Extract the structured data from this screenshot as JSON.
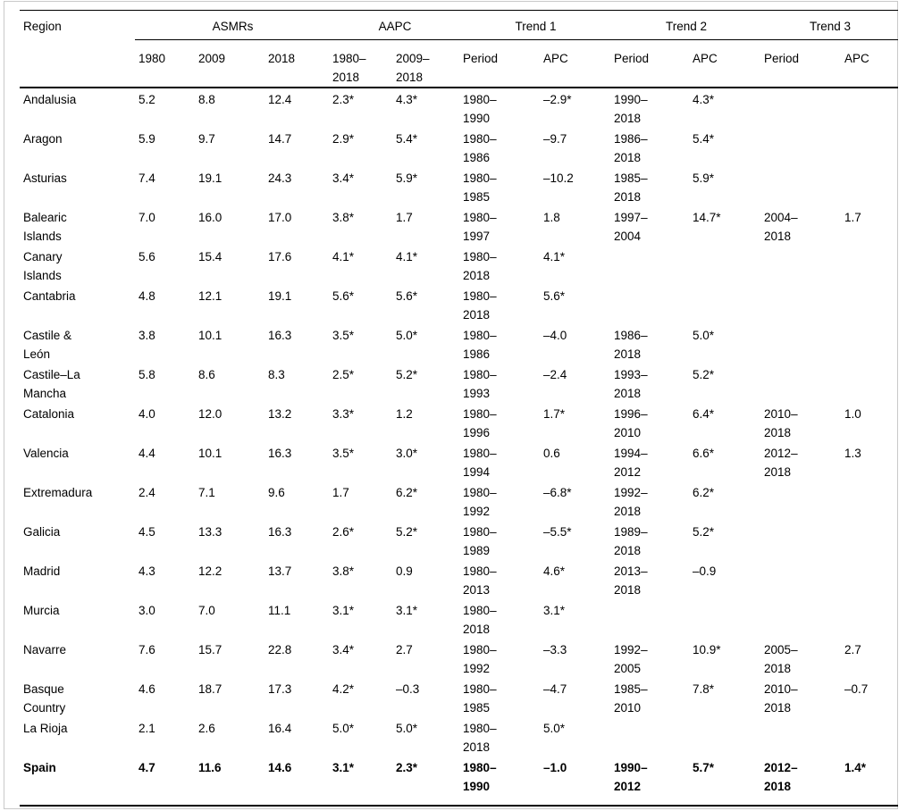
{
  "table": {
    "col_groups": [
      {
        "label": "Region"
      },
      {
        "label": "ASMRs",
        "span": 3
      },
      {
        "label": "AAPC",
        "span": 2
      },
      {
        "label": "Trend 1",
        "span": 2
      },
      {
        "label": "Trend 2",
        "span": 2
      },
      {
        "label": "Trend 3",
        "span": 2
      }
    ],
    "sub_headers": [
      "1980",
      "2009",
      "2018",
      "1980–\n2018",
      "2009–\n2018",
      "Period",
      "APC",
      "Period",
      "APC",
      "Period",
      "APC"
    ],
    "rows": [
      {
        "region": "Andalusia",
        "bold": false,
        "cells": [
          "5.2",
          "8.8",
          "12.4",
          "2.3*",
          "4.3*",
          "1980–\n1990",
          "–2.9*",
          "1990–\n2018",
          "4.3*",
          "",
          ""
        ]
      },
      {
        "region": "Aragon",
        "bold": false,
        "cells": [
          "5.9",
          "9.7",
          "14.7",
          "2.9*",
          "5.4*",
          "1980–\n1986",
          "–9.7",
          "1986–\n2018",
          "5.4*",
          "",
          ""
        ]
      },
      {
        "region": "Asturias",
        "bold": false,
        "cells": [
          "7.4",
          "19.1",
          "24.3",
          "3.4*",
          "5.9*",
          "1980–\n1985",
          "–10.2",
          "1985–\n2018",
          "5.9*",
          "",
          ""
        ]
      },
      {
        "region": "Balearic\nIslands",
        "bold": false,
        "cells": [
          "7.0",
          "16.0",
          "17.0",
          "3.8*",
          "1.7",
          "1980–\n1997",
          "1.8",
          "1997–\n2004",
          "14.7*",
          "2004–\n2018",
          "1.7"
        ]
      },
      {
        "region": "Canary\nIslands",
        "bold": false,
        "cells": [
          "5.6",
          "15.4",
          "17.6",
          "4.1*",
          "4.1*",
          "1980–\n2018",
          "4.1*",
          "",
          "",
          "",
          ""
        ]
      },
      {
        "region": "Cantabria",
        "bold": false,
        "cells": [
          "4.8",
          "12.1",
          "19.1",
          "5.6*",
          "5.6*",
          "1980–\n2018",
          "5.6*",
          "",
          "",
          "",
          ""
        ]
      },
      {
        "region": "Castile &\nLeón",
        "bold": false,
        "cells": [
          "3.8",
          "10.1",
          "16.3",
          "3.5*",
          "5.0*",
          "1980–\n1986",
          "–4.0",
          "1986–\n2018",
          "5.0*",
          "",
          ""
        ]
      },
      {
        "region": "Castile–La\nMancha",
        "bold": false,
        "cells": [
          "5.8",
          "8.6",
          "8.3",
          "2.5*",
          "5.2*",
          "1980–\n1993",
          "–2.4",
          "1993–\n2018",
          "5.2*",
          "",
          ""
        ]
      },
      {
        "region": "Catalonia",
        "bold": false,
        "cells": [
          "4.0",
          "12.0",
          "13.2",
          "3.3*",
          "1.2",
          "1980–\n1996",
          "1.7*",
          "1996–\n2010",
          "6.4*",
          "2010–\n2018",
          "1.0"
        ]
      },
      {
        "region": "Valencia",
        "bold": false,
        "cells": [
          "4.4",
          "10.1",
          "16.3",
          "3.5*",
          "3.0*",
          "1980–\n1994",
          "0.6",
          "1994–\n2012",
          "6.6*",
          "2012–\n2018",
          "1.3"
        ]
      },
      {
        "region": "Extremadura",
        "bold": false,
        "cells": [
          "2.4",
          "7.1",
          "9.6",
          "1.7",
          "6.2*",
          "1980–\n1992",
          "–6.8*",
          "1992–\n2018",
          "6.2*",
          "",
          ""
        ]
      },
      {
        "region": "Galicia",
        "bold": false,
        "cells": [
          "4.5",
          "13.3",
          "16.3",
          "2.6*",
          "5.2*",
          "1980–\n1989",
          "–5.5*",
          "1989–\n2018",
          "5.2*",
          "",
          ""
        ]
      },
      {
        "region": "Madrid",
        "bold": false,
        "cells": [
          "4.3",
          "12.2",
          "13.7",
          "3.8*",
          "0.9",
          "1980–\n2013",
          "4.6*",
          "2013–\n2018",
          "–0.9",
          "",
          ""
        ]
      },
      {
        "region": "Murcia",
        "bold": false,
        "cells": [
          "3.0",
          "7.0",
          "11.1",
          "3.1*",
          "3.1*",
          "1980–\n2018",
          "3.1*",
          "",
          "",
          "",
          ""
        ]
      },
      {
        "region": "Navarre",
        "bold": false,
        "cells": [
          "7.6",
          "15.7",
          "22.8",
          "3.4*",
          "2.7",
          "1980–\n1992",
          "–3.3",
          "1992–\n2005",
          "10.9*",
          "2005–\n2018",
          "2.7"
        ]
      },
      {
        "region": "Basque\nCountry",
        "bold": false,
        "cells": [
          "4.6",
          "18.7",
          "17.3",
          "4.2*",
          "–0.3",
          "1980–\n1985",
          "–4.7",
          "1985–\n2010",
          "7.8*",
          "2010–\n2018",
          "–0.7"
        ]
      },
      {
        "region": "La Rioja",
        "bold": false,
        "cells": [
          "2.1",
          "2.6",
          "16.4",
          "5.0*",
          "5.0*",
          "1980–\n2018",
          "5.0*",
          "",
          "",
          "",
          ""
        ]
      },
      {
        "region": "Spain",
        "bold": true,
        "cells": [
          "4.7",
          "11.6",
          "14.6",
          "3.1*",
          "2.3*",
          "1980–\n1990",
          "–1.0",
          "1990–\n2012",
          "5.7*",
          "2012–\n2018",
          "1.4*"
        ]
      }
    ]
  }
}
